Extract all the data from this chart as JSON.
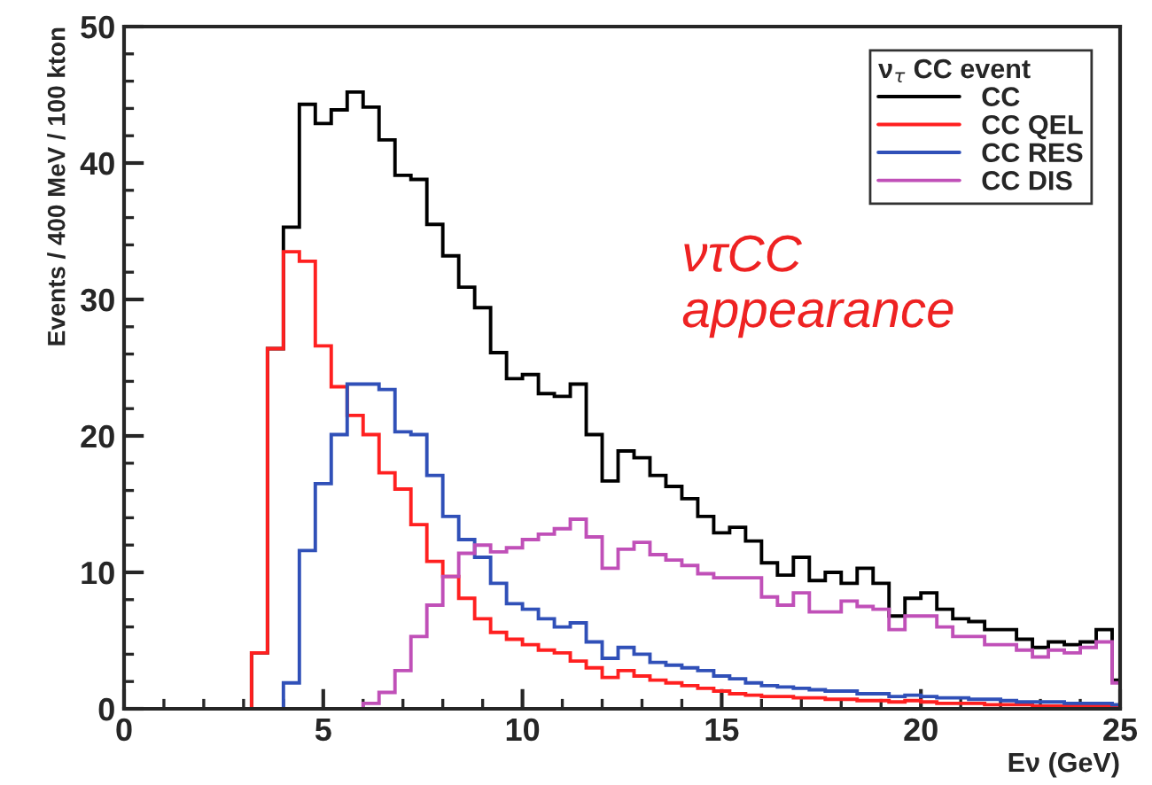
{
  "chart_data": {
    "type": "histogram",
    "xlabel": "Eν (GeV)",
    "ylabel": "Events / 400 MeV / 100 kton",
    "legend_title": "ν$_{τ}$ CC event",
    "annotations": [
      "ντCC\nappearance"
    ],
    "bins": [
      0,
      0.4,
      0.8,
      1.2,
      1.6,
      2.0,
      2.4,
      2.8,
      3.2,
      3.6,
      4.0,
      4.4,
      4.8,
      5.2,
      5.6,
      6.0,
      6.4,
      6.8,
      7.2,
      7.6,
      8.0,
      8.4,
      8.8,
      9.2,
      9.6,
      10.0,
      10.4,
      10.8,
      11.2,
      11.6,
      12.0,
      12.4,
      12.8,
      13.2,
      13.6,
      14.0,
      14.4,
      14.8,
      15.2,
      15.6,
      16.0,
      16.4,
      16.8,
      17.2,
      17.6,
      18.0,
      18.4,
      18.8,
      19.2,
      19.6,
      20.0,
      20.4,
      20.8,
      21.2,
      21.6,
      22.0,
      22.4,
      22.8,
      23.2,
      23.6,
      24.0,
      24.4,
      24.8,
      25.0
    ],
    "series": [
      {
        "name": "CC",
        "color": "#000000",
        "values": [
          0,
          0,
          0,
          0,
          0,
          0,
          0,
          0,
          4.1,
          26.4,
          35.3,
          44.3,
          42.9,
          43.9,
          45.2,
          44.1,
          41.7,
          39.1,
          38.8,
          35.5,
          33.2,
          30.9,
          29.4,
          26.1,
          24.2,
          24.5,
          23.1,
          22.9,
          23.8,
          20.1,
          16.7,
          18.9,
          18.4,
          17.1,
          16.3,
          15.4,
          14.1,
          12.9,
          13.3,
          12.3,
          10.7,
          9.8,
          11.1,
          9.4,
          10.0,
          9.2,
          10.3,
          9.2,
          6.8,
          8.1,
          8.5,
          7.3,
          6.6,
          6.4,
          5.8,
          5.8,
          5.1,
          4.5,
          4.9,
          4.7,
          4.9,
          5.8,
          2.1
        ]
      },
      {
        "name": "CC QEL",
        "color": "#ff2020",
        "values": [
          0,
          0,
          0,
          0,
          0,
          0,
          0,
          0,
          4.1,
          26.4,
          33.5,
          32.8,
          26.6,
          23.6,
          21.5,
          20.1,
          17.3,
          16.1,
          13.5,
          10.8,
          9.7,
          8.1,
          6.6,
          5.6,
          5.1,
          4.7,
          4.3,
          4.1,
          3.5,
          3.0,
          2.3,
          2.8,
          2.4,
          2.1,
          1.9,
          1.7,
          1.5,
          1.3,
          1.1,
          1.0,
          0.9,
          0.9,
          0.8,
          0.8,
          0.7,
          0.7,
          0.6,
          0.6,
          0.5,
          0.6,
          0.5,
          0.4,
          0.4,
          0.4,
          0.3,
          0.3,
          0.3,
          0.2,
          0.2,
          0.2,
          0.2,
          0.2,
          0.1
        ]
      },
      {
        "name": "CC RES",
        "color": "#3050b8",
        "values": [
          0,
          0,
          0,
          0,
          0,
          0,
          0,
          0,
          0,
          0,
          1.9,
          11.6,
          16.5,
          20.1,
          23.8,
          23.8,
          23.4,
          20.3,
          20.1,
          17.1,
          14.1,
          12.4,
          11.1,
          9.2,
          7.7,
          7.3,
          6.6,
          6.0,
          6.3,
          4.9,
          3.7,
          4.5,
          4.0,
          3.4,
          3.2,
          3.0,
          2.8,
          2.4,
          2.2,
          1.9,
          1.7,
          1.6,
          1.5,
          1.4,
          1.3,
          1.3,
          1.1,
          1.1,
          0.9,
          1.0,
          0.9,
          0.8,
          0.8,
          0.7,
          0.7,
          0.6,
          0.5,
          0.5,
          0.5,
          0.4,
          0.4,
          0.4,
          0.3
        ]
      },
      {
        "name": "CC DIS",
        "color": "#c050b8",
        "values": [
          0,
          0,
          0,
          0,
          0,
          0,
          0,
          0,
          0,
          0,
          0,
          0,
          0,
          0,
          0,
          0.4,
          1.2,
          2.8,
          5.3,
          7.6,
          9.7,
          11.4,
          12.0,
          11.5,
          11.8,
          12.4,
          12.8,
          13.2,
          13.9,
          12.6,
          10.3,
          11.7,
          12.2,
          11.3,
          10.9,
          10.5,
          9.9,
          9.6,
          9.6,
          9.6,
          8.2,
          7.6,
          8.5,
          7.1,
          7.1,
          7.9,
          7.5,
          7.3,
          5.8,
          6.8,
          6.8,
          6.0,
          5.3,
          5.3,
          4.7,
          4.7,
          4.3,
          3.8,
          4.3,
          4.1,
          4.5,
          4.9,
          1.9
        ]
      }
    ],
    "xlim": [
      0,
      25
    ],
    "xticks": [
      0,
      5,
      10,
      15,
      20,
      25
    ],
    "ylim": [
      0,
      50
    ],
    "yticks": [
      0,
      10,
      20,
      30,
      40,
      50
    ],
    "grid": false,
    "legend": "top right"
  }
}
